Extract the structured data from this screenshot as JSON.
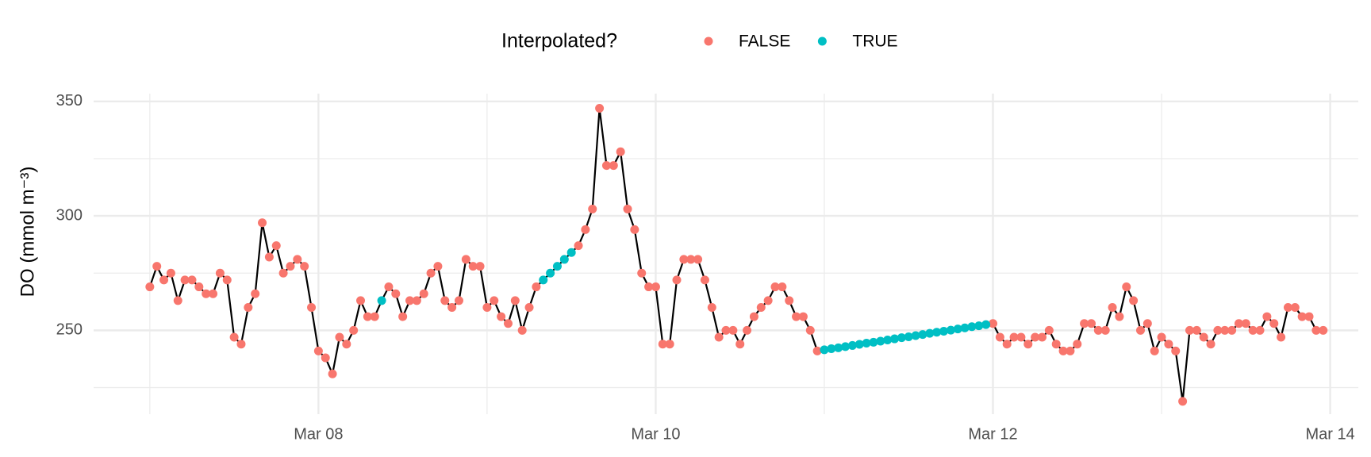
{
  "chart_data": {
    "type": "line",
    "y_label": "DO (mmol m⁻³)",
    "legend_title": "Interpolated?",
    "legend_position": "top",
    "line_color": "#000000",
    "grid": true,
    "x": [
      0,
      1,
      2,
      3,
      4,
      5,
      6,
      7,
      8,
      9,
      10,
      11,
      12,
      13,
      14,
      15,
      16,
      17,
      18,
      19,
      20,
      21,
      22,
      23,
      24,
      25,
      26,
      27,
      28,
      29,
      30,
      31,
      32,
      33,
      34,
      35,
      36,
      37,
      38,
      39,
      40,
      41,
      42,
      43,
      44,
      45,
      46,
      47,
      48,
      49,
      50,
      51,
      52,
      53,
      54,
      55,
      56,
      57,
      58,
      59,
      60,
      61,
      62,
      63,
      64,
      65,
      66,
      67,
      68,
      69,
      70,
      71,
      72,
      73,
      74,
      75,
      76,
      77,
      78,
      79,
      80,
      81,
      82,
      83,
      84,
      85,
      86,
      87,
      88,
      89,
      90,
      91,
      92,
      93,
      94,
      95,
      96,
      97,
      98,
      99,
      100,
      101,
      102,
      103,
      104,
      105,
      106,
      107,
      108,
      109,
      110,
      111,
      112,
      113,
      114,
      115,
      116,
      117,
      118,
      119,
      120,
      121,
      122,
      123,
      124,
      125,
      126,
      127,
      128,
      129,
      130,
      131,
      132,
      133,
      134,
      135,
      136,
      137,
      138,
      139,
      140,
      141,
      142,
      143,
      144,
      145,
      146,
      147,
      148,
      149,
      150,
      151,
      152,
      153,
      154,
      155,
      156,
      157,
      158,
      159,
      160,
      161,
      162,
      163,
      164,
      165,
      166,
      167
    ],
    "xlim": [
      -8,
      172
    ],
    "xticks": [
      {
        "value": 24,
        "label": "Mar 08"
      },
      {
        "value": 72,
        "label": "Mar 10"
      },
      {
        "value": 120,
        "label": "Mar 12"
      },
      {
        "value": 168,
        "label": "Mar 14"
      }
    ],
    "ylim": [
      213.4,
      353.4
    ],
    "yticks": [
      250,
      300,
      350
    ],
    "series": [
      {
        "name": "FALSE",
        "color": "#F8766D",
        "values": [
          269,
          278,
          272,
          275,
          263,
          272,
          272,
          269,
          266,
          266,
          275,
          272,
          247,
          244,
          260,
          266,
          297,
          282,
          287,
          275,
          278,
          281,
          278,
          260,
          241,
          238,
          231,
          247,
          244,
          250,
          263,
          256,
          256,
          null,
          269,
          266,
          256,
          263,
          263,
          266,
          275,
          278,
          263,
          260,
          263,
          281,
          278,
          278,
          260,
          263,
          256,
          253,
          263,
          250,
          260,
          269,
          null,
          null,
          null,
          null,
          null,
          287,
          294,
          303,
          347,
          322,
          322,
          328,
          303,
          294,
          275,
          269,
          269,
          244,
          244,
          272,
          281,
          281,
          281,
          272,
          260,
          247,
          250,
          250,
          244,
          250,
          256,
          260,
          263,
          269,
          269,
          263,
          256,
          256,
          250,
          241,
          null,
          null,
          null,
          null,
          null,
          null,
          null,
          null,
          null,
          null,
          null,
          null,
          null,
          null,
          null,
          null,
          null,
          null,
          null,
          null,
          null,
          null,
          null,
          null,
          253,
          247,
          244,
          247,
          247,
          244,
          247,
          247,
          250,
          244,
          241,
          241,
          244,
          253,
          253,
          250,
          250,
          260,
          256,
          269,
          263,
          250,
          253,
          241,
          247,
          244,
          241,
          219,
          250,
          250,
          247,
          244,
          250,
          250,
          250,
          253,
          253,
          250,
          250,
          256,
          253,
          247,
          260,
          260,
          256,
          256,
          250,
          250
        ]
      },
      {
        "name": "TRUE",
        "color": "#00BFC4",
        "values": [
          null,
          null,
          null,
          null,
          null,
          null,
          null,
          null,
          null,
          null,
          null,
          null,
          null,
          null,
          null,
          null,
          null,
          null,
          null,
          null,
          null,
          null,
          null,
          null,
          null,
          null,
          null,
          null,
          null,
          null,
          null,
          null,
          null,
          263,
          null,
          null,
          null,
          null,
          null,
          null,
          null,
          null,
          null,
          null,
          null,
          null,
          null,
          null,
          null,
          null,
          null,
          null,
          null,
          null,
          null,
          null,
          272,
          275,
          278,
          281,
          284,
          null,
          null,
          null,
          null,
          null,
          null,
          null,
          null,
          null,
          null,
          null,
          null,
          null,
          null,
          null,
          null,
          null,
          null,
          null,
          null,
          null,
          null,
          null,
          null,
          null,
          null,
          null,
          null,
          null,
          null,
          null,
          null,
          null,
          null,
          null,
          241.5,
          242,
          242.4,
          242.9,
          243.4,
          243.9,
          244.4,
          244.8,
          245.3,
          245.8,
          246.3,
          246.8,
          247.2,
          247.7,
          248.2,
          248.7,
          249.2,
          249.6,
          250.1,
          250.6,
          251.1,
          251.6,
          252,
          252.5,
          null,
          null,
          null,
          null,
          null,
          null,
          null,
          null,
          null,
          null,
          null,
          null,
          null,
          null,
          null,
          null,
          null,
          null,
          null,
          null,
          null,
          null,
          null,
          null,
          null,
          null,
          null,
          null,
          null,
          null,
          null,
          null,
          null,
          null,
          null,
          null,
          null,
          null,
          null,
          null,
          null,
          null,
          null,
          null,
          null,
          null,
          null,
          null
        ]
      }
    ]
  }
}
